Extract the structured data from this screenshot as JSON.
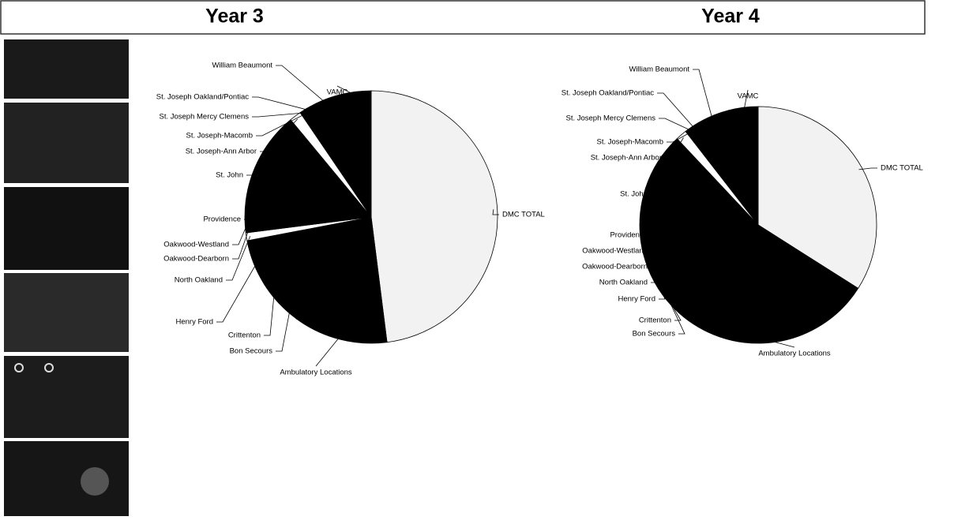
{
  "chart_data": [
    {
      "type": "pie",
      "title": "Year 3",
      "categories": [
        "DMC TOTAL",
        "Ambulatory Locations",
        "Bon Secours",
        "Crittenton",
        "Henry Ford",
        "North Oakland",
        "Oakwood-Dearborn",
        "Oakwood-Westland",
        "Providence",
        "St. John",
        "St. Joseph-Ann Arbor",
        "St. Joseph-Macomb",
        "St. Joseph Mercy Clemens",
        "St. Joseph Oakland/Pontiac",
        "William Beaumont",
        "VAMC"
      ],
      "values": [
        48,
        12,
        3,
        3,
        6,
        1,
        1,
        1,
        8,
        6,
        1.5,
        0.5,
        0.5,
        0.5,
        4,
        4
      ],
      "colors": [
        "#f2f2f2",
        "#000000",
        "#000000",
        "#000000",
        "#000000",
        "#ffffff",
        "#000000",
        "#000000",
        "#000000",
        "#000000",
        "#ffffff",
        "#000000",
        "#000000",
        "#000000",
        "#000000",
        "#000000"
      ]
    },
    {
      "type": "pie",
      "title": "Year 4",
      "categories": [
        "DMC TOTAL",
        "Ambulatory Locations",
        "Bon Secours",
        "Crittenton",
        "Henry Ford",
        "North Oakland",
        "Oakwood-Dearborn",
        "Oakwood-Westland",
        "Providence",
        "St. John",
        "St. Joseph-Ann Arbor",
        "St. Joseph-Macomb",
        "St. Joseph Mercy Clemens",
        "St. Joseph Oakland/Pontiac",
        "William Beaumont",
        "VAMC"
      ],
      "values": [
        34,
        30,
        2,
        2,
        4,
        1,
        1,
        1,
        5,
        8,
        1.5,
        0.5,
        0.5,
        0.5,
        5,
        4
      ],
      "colors": [
        "#f2f2f2",
        "#000000",
        "#000000",
        "#000000",
        "#000000",
        "#000000",
        "#000000",
        "#000000",
        "#000000",
        "#000000",
        "#ffffff",
        "#000000",
        "#000000",
        "#000000",
        "#000000",
        "#000000"
      ]
    }
  ]
}
